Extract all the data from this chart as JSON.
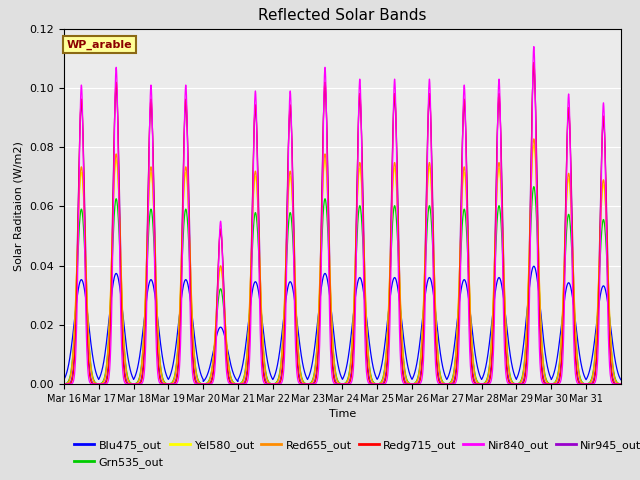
{
  "title": "Reflected Solar Bands",
  "xlabel": "Time",
  "ylabel": "Solar Raditaion (W/m2)",
  "annotation": "WP_arable",
  "annotation_color": "#8B0000",
  "annotation_bg": "#FFFF99",
  "annotation_border": "#8B6914",
  "ylim": [
    0,
    0.12
  ],
  "yticks": [
    0.0,
    0.02,
    0.04,
    0.06,
    0.08,
    0.1,
    0.12
  ],
  "xtick_labels": [
    "Mar 16",
    "Mar 17",
    "Mar 18",
    "Mar 19",
    "Mar 20",
    "Mar 21",
    "Mar 22",
    "Mar 23",
    "Mar 24",
    "Mar 25",
    "Mar 26",
    "Mar 27",
    "Mar 28",
    "Mar 29",
    "Mar 30",
    "Mar 31"
  ],
  "series_colors": {
    "Blu475_out": "#0000FF",
    "Grn535_out": "#00CC00",
    "Yel580_out": "#FFFF00",
    "Red655_out": "#FF8C00",
    "Redg715_out": "#FF0000",
    "Nir840_out": "#FF00FF",
    "Nir945_out": "#9900CC"
  },
  "peak_scales": {
    "Blu475_out": 0.037,
    "Grn535_out": 0.062,
    "Yel580_out": 0.075,
    "Red655_out": 0.077,
    "Redg715_out": 0.101,
    "Nir840_out": 0.106,
    "Nir945_out": 0.099
  },
  "peak_widths": {
    "Blu475_out": 0.2,
    "Grn535_out": 0.13,
    "Yel580_out": 0.12,
    "Red655_out": 0.12,
    "Redg715_out": 0.09,
    "Nir840_out": 0.075,
    "Nir945_out": 0.1
  },
  "day_peak_nir840": [
    0.101,
    0.107,
    0.101,
    0.101,
    0.055,
    0.099,
    0.099,
    0.107,
    0.103,
    0.103,
    0.103,
    0.101,
    0.103,
    0.114,
    0.098,
    0.095
  ],
  "background_color": "#E0E0E0",
  "plot_bg": "#EBEBEB",
  "grid_color": "#FFFFFF",
  "points_per_day": 480,
  "n_days": 16
}
